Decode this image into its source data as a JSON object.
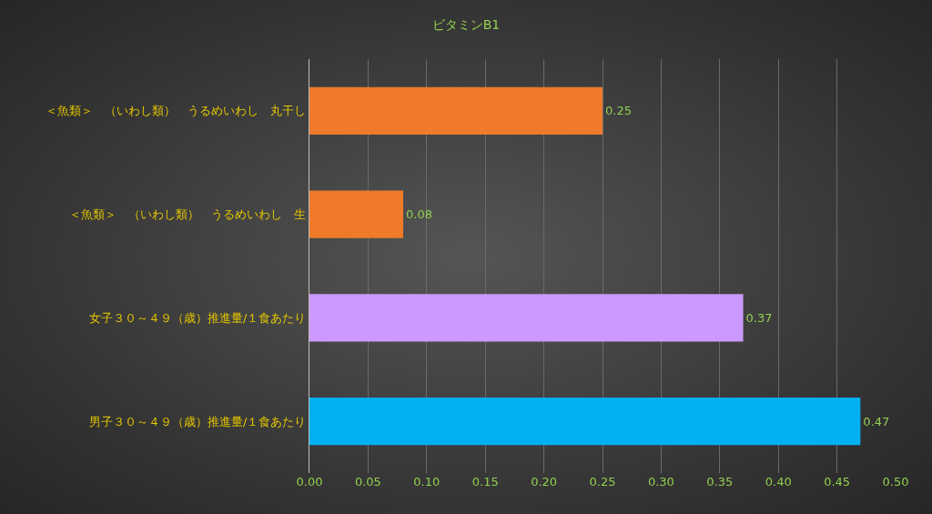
{
  "chart_data": {
    "type": "bar",
    "orientation": "horizontal",
    "title": "ビタミンB1",
    "categories": [
      "＜魚類＞　（いわし類）　うるめいわし　丸干し",
      "＜魚類＞　（いわし類）　うるめいわし　生",
      "女子３０～４９（歳）推進量/１食あたり",
      "男子３０～４９（歳）推進量/１食あたり"
    ],
    "values": [
      0.25,
      0.08,
      0.37,
      0.47
    ],
    "colors": [
      "#ef7a2a",
      "#ef7a2a",
      "#cc99ff",
      "#00b0f0"
    ],
    "data_labels": true,
    "xlim": [
      0,
      0.5
    ],
    "xticks": [
      {
        "value": 0,
        "label": "0.00"
      },
      {
        "value": 0.05,
        "label": "0.05"
      },
      {
        "value": 0.1,
        "label": "0.10"
      },
      {
        "value": 0.15,
        "label": "0.15"
      },
      {
        "value": 0.2,
        "label": "0.20"
      },
      {
        "value": 0.25,
        "label": "0.25"
      },
      {
        "value": 0.3,
        "label": "0.30"
      },
      {
        "value": 0.35,
        "label": "0.35"
      },
      {
        "value": 0.4,
        "label": "0.40"
      },
      {
        "value": 0.45,
        "label": "0.45"
      },
      {
        "value": 0.5,
        "label": "0.50"
      }
    ],
    "grid": "x"
  }
}
